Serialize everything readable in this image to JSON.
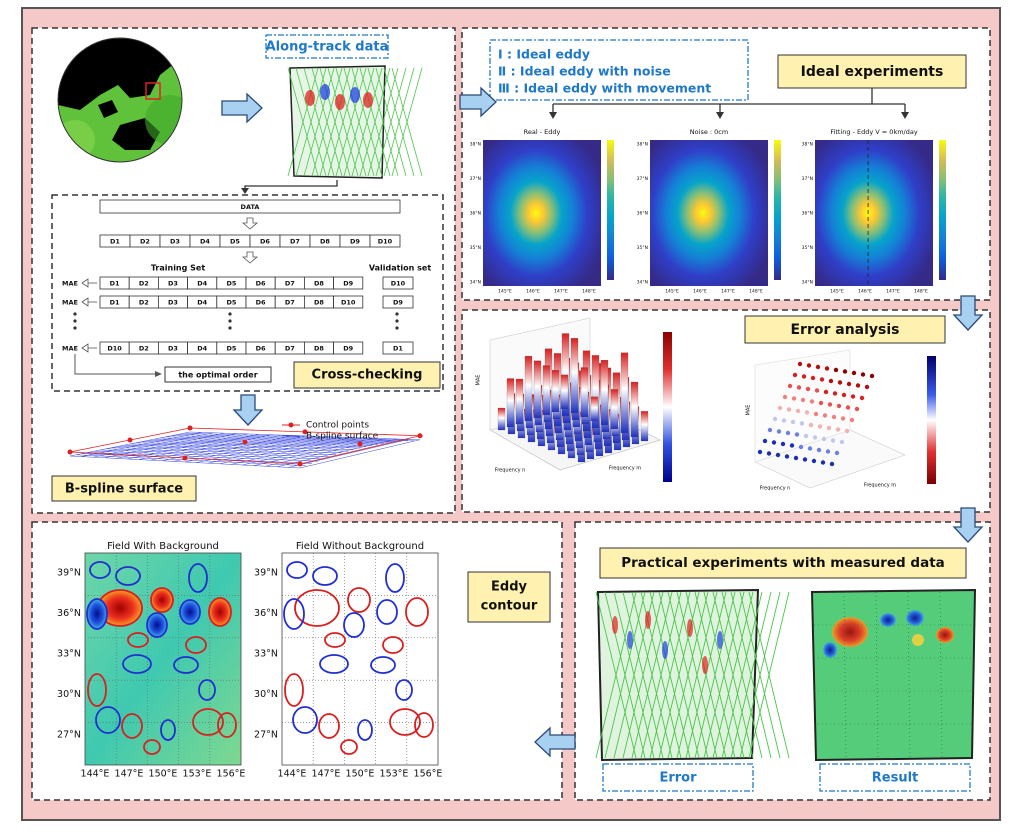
{
  "along_track": {
    "label": "Along-track data"
  },
  "cross_checking": {
    "title": "Cross-checking",
    "data_label": "DATA",
    "folds": [
      "D1",
      "D2",
      "D3",
      "D4",
      "D5",
      "D6",
      "D7",
      "D8",
      "D9",
      "D10"
    ],
    "training_label": "Training Set",
    "validation_label": "Validation set",
    "metric": "MAE",
    "rows": [
      {
        "training": [
          "D1",
          "D2",
          "D3",
          "D4",
          "D5",
          "D6",
          "D7",
          "D8",
          "D9"
        ],
        "validation": "D10"
      },
      {
        "training": [
          "D1",
          "D2",
          "D3",
          "D4",
          "D5",
          "D6",
          "D7",
          "D8",
          "D10"
        ],
        "validation": "D9"
      },
      {
        "training": [
          "D10",
          "D2",
          "D3",
          "D4",
          "D5",
          "D6",
          "D7",
          "D8",
          "D9"
        ],
        "validation": "D1"
      }
    ],
    "optimal": "the optimal order"
  },
  "bspline": {
    "legend": [
      "Control points",
      "B-spline surface"
    ],
    "title": "B-spline surface"
  },
  "ideal": {
    "cases": [
      "Ⅰ : Ideal eddy",
      "Ⅱ : Ideal eddy with noise",
      "Ⅲ : Ideal eddy with movement"
    ],
    "title": "Ideal experiments",
    "plots": [
      "Real - Eddy",
      "Noise : 0cm",
      "Fitting - Eddy V = 0km/day"
    ],
    "lat_ticks": [
      "38°N",
      "37°N",
      "36°N",
      "35°N",
      "34°N"
    ],
    "lon_ticks": [
      "145°E",
      "146°E",
      "147°E",
      "148°E"
    ]
  },
  "error_analysis": {
    "title": "Error analysis",
    "x_label": "Frequency m",
    "y_label": "Frequency n",
    "z_label": "MAE"
  },
  "practical": {
    "title": "Practical experiments with measured data",
    "maps": [
      "Error",
      "Result"
    ]
  },
  "eddy_contour": {
    "title": [
      "Eddy",
      "contour"
    ],
    "maps": [
      "Field With Background",
      "Field Without Background"
    ],
    "lat_ticks": [
      "39°N",
      "36°N",
      "33°N",
      "30°N",
      "27°N"
    ],
    "lon_ticks": [
      "144°E",
      "147°E",
      "150°E",
      "153°E",
      "156°E"
    ]
  }
}
